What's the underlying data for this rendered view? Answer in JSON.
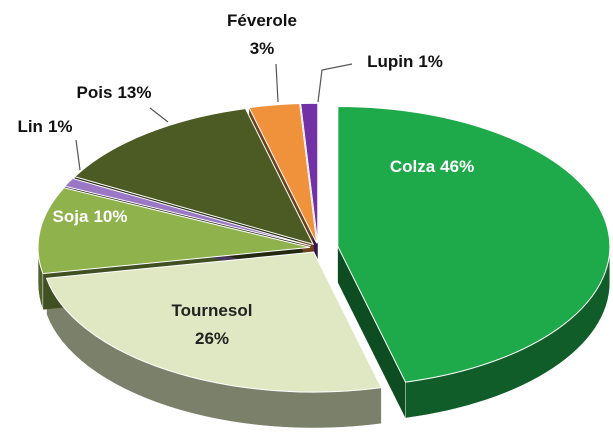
{
  "chart_data": {
    "type": "pie",
    "categories": [
      "Colza",
      "Tournesol",
      "Soja",
      "Lin",
      "Pois",
      "Féverole",
      "Lupin"
    ],
    "values": [
      46,
      26,
      10,
      1,
      13,
      3,
      1
    ],
    "value_labels": [
      "46%",
      "26%",
      "10%",
      "1%",
      "13%",
      "3%",
      "1%"
    ],
    "colors": [
      "#1ea94a",
      "#dfe8c2",
      "#8fb24c",
      "#9b78c6",
      "#4c5b24",
      "#f0913c",
      "#7232a6"
    ]
  }
}
